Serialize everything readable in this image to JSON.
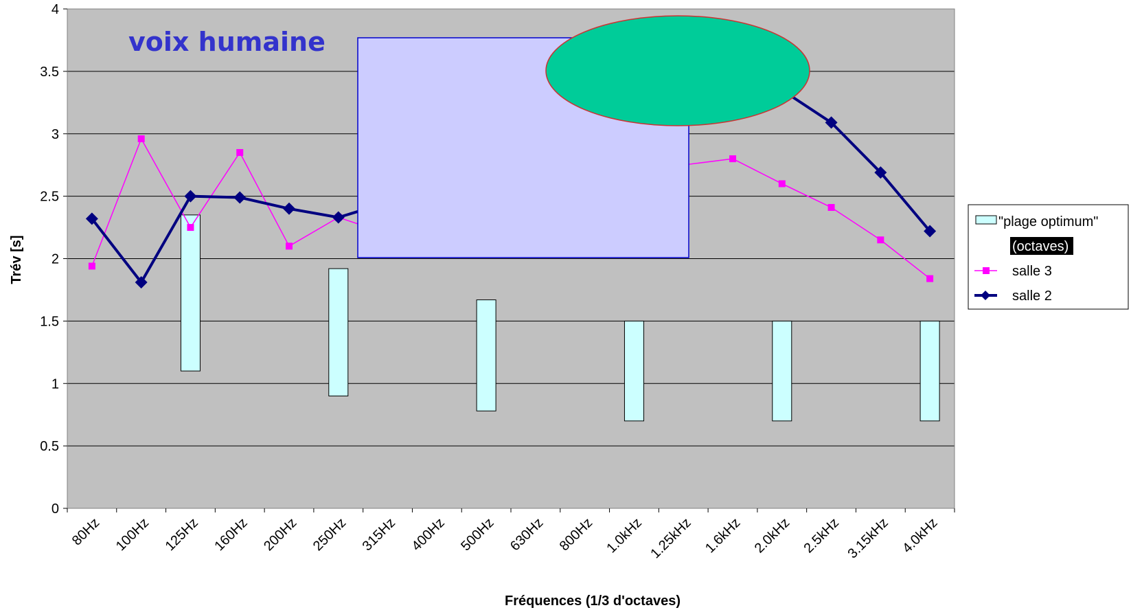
{
  "chart_data": {
    "type": "line",
    "title": "voix humaine",
    "xlabel": "Fréquences (1/3 d'octaves)",
    "ylabel": "Trév [s]",
    "ylim": [
      0,
      4
    ],
    "yticks": [
      "0",
      "0.5",
      "1",
      "1.5",
      "2",
      "2.5",
      "3",
      "3.5",
      "4"
    ],
    "categories": [
      "80Hz",
      "100Hz",
      "125Hz",
      "160Hz",
      "200Hz",
      "250Hz",
      "315Hz",
      "400Hz",
      "500Hz",
      "630Hz",
      "800Hz",
      "1.0kHz",
      "1.25kHz",
      "1.6kHz",
      "2.0kHz",
      "2.5kHz",
      "3.15kHz",
      "4.0kHz"
    ],
    "grid": true,
    "legend_position": "right",
    "optimum_range": {
      "name": "\"plage optimum\" (octaves)",
      "bars": [
        {
          "category": "125Hz",
          "low": 1.1,
          "high": 2.35
        },
        {
          "category": "250Hz",
          "low": 0.9,
          "high": 1.92
        },
        {
          "category": "500Hz",
          "low": 0.78,
          "high": 1.67
        },
        {
          "category": "1.0kHz",
          "low": 0.7,
          "high": 1.5
        },
        {
          "category": "2.0kHz",
          "low": 0.7,
          "high": 1.5
        },
        {
          "category": "4.0kHz",
          "low": 0.7,
          "high": 1.5
        }
      ]
    },
    "series": [
      {
        "name": "salle 3",
        "color": "#ff00ff",
        "marker": "square",
        "values": [
          1.94,
          2.96,
          2.25,
          2.85,
          2.1,
          2.33,
          2.2,
          null,
          null,
          null,
          null,
          null,
          2.75,
          2.8,
          2.6,
          2.41,
          2.15,
          1.84
        ]
      },
      {
        "name": "salle 2",
        "color": "#000080",
        "marker": "diamond",
        "values": [
          2.32,
          1.81,
          2.5,
          2.49,
          2.4,
          2.33,
          2.45,
          null,
          null,
          null,
          null,
          null,
          null,
          null,
          3.35,
          3.09,
          2.69,
          2.22
        ]
      }
    ]
  },
  "legend": {
    "items": [
      {
        "label_line1": "\"plage optimum\"",
        "label_line2": "(octaves)"
      },
      {
        "label": "salle 3"
      },
      {
        "label": "salle 2"
      }
    ]
  },
  "colors": {
    "plot_background": "#c0c0c0",
    "range_fill": "#ccffff",
    "overlay_rect_fill": "#ccccff",
    "overlay_rect_border": "#0000cc",
    "ellipse_fill": "#00cc99",
    "ellipse_border": "#cc3333",
    "title_color": "#3333cc"
  }
}
